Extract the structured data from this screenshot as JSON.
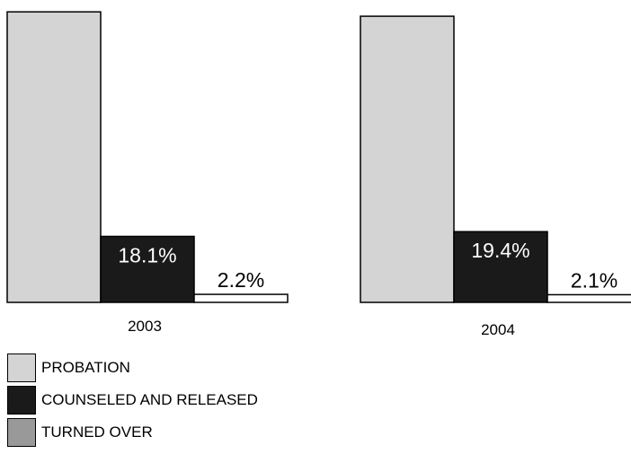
{
  "chart_data": {
    "type": "bar",
    "categories": [
      "2003",
      "2004"
    ],
    "series": [
      {
        "name": "PROBATION",
        "values": [
          79.7,
          78.5
        ],
        "value_labels": [
          "",
          ""
        ],
        "color": "#d4d4d4"
      },
      {
        "name": "COUNSELED AND RELEASED",
        "values": [
          18.1,
          19.4
        ],
        "value_labels": [
          "18.1%",
          "19.4%"
        ],
        "color": "#1a1a1a"
      },
      {
        "name": "TURNED OVER",
        "values": [
          2.2,
          2.1
        ],
        "value_labels": [
          "2.2%",
          "2.1%"
        ],
        "color": "#ffffff"
      }
    ],
    "legend": {
      "position": "bottom-left",
      "items": [
        {
          "label": "PROBATION",
          "color": "#d4d4d4"
        },
        {
          "label": "COUNSELED AND RELEASED",
          "color": "#1a1a1a"
        },
        {
          "label": "TURNED OVER",
          "color": "#999999"
        }
      ]
    },
    "ylim": [
      0,
      80
    ],
    "grid": false,
    "title": "",
    "xlabel": "",
    "ylabel": ""
  }
}
